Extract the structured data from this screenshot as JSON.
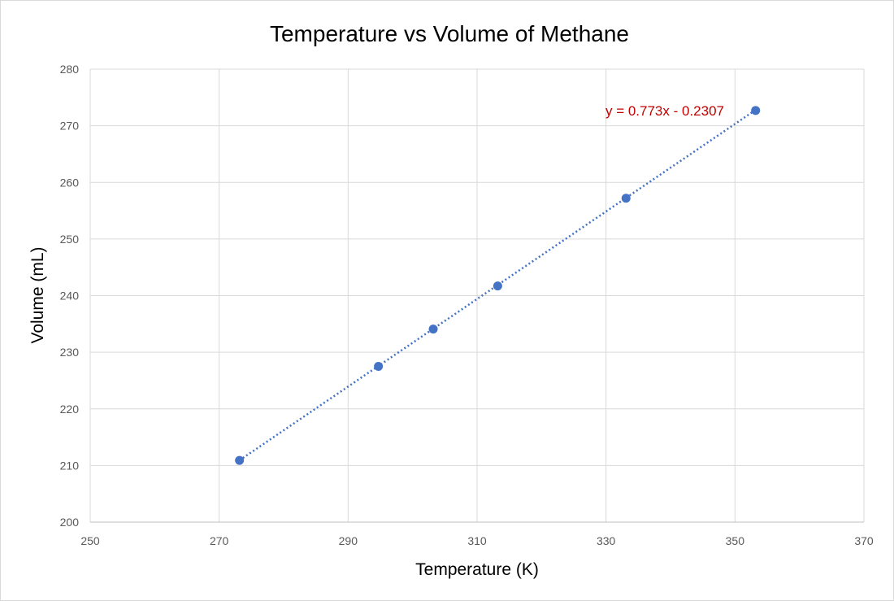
{
  "chart_data": {
    "type": "scatter",
    "title": "Temperature vs Volume of Methane",
    "xlabel": "Temperature (K)",
    "ylabel": "Volume (mL)",
    "xlim": [
      250,
      370
    ],
    "ylim": [
      200,
      280
    ],
    "x_ticks": [
      250,
      270,
      290,
      310,
      330,
      350,
      370
    ],
    "y_ticks": [
      200,
      210,
      220,
      230,
      240,
      250,
      260,
      270,
      280
    ],
    "grid": true,
    "series": [
      {
        "x": [
          273.15,
          294.7,
          303.2,
          313.2,
          333.1,
          353.2
        ],
        "y": [
          210.9,
          227.5,
          234.1,
          241.7,
          257.2,
          272.7
        ],
        "color": "#4472c4"
      }
    ],
    "trendline": {
      "type": "linear",
      "slope": 0.773,
      "intercept": -0.2307,
      "equation": "y = 0.773x - 0.2307",
      "color": "#4472c4",
      "label_color": "#c00000"
    }
  }
}
